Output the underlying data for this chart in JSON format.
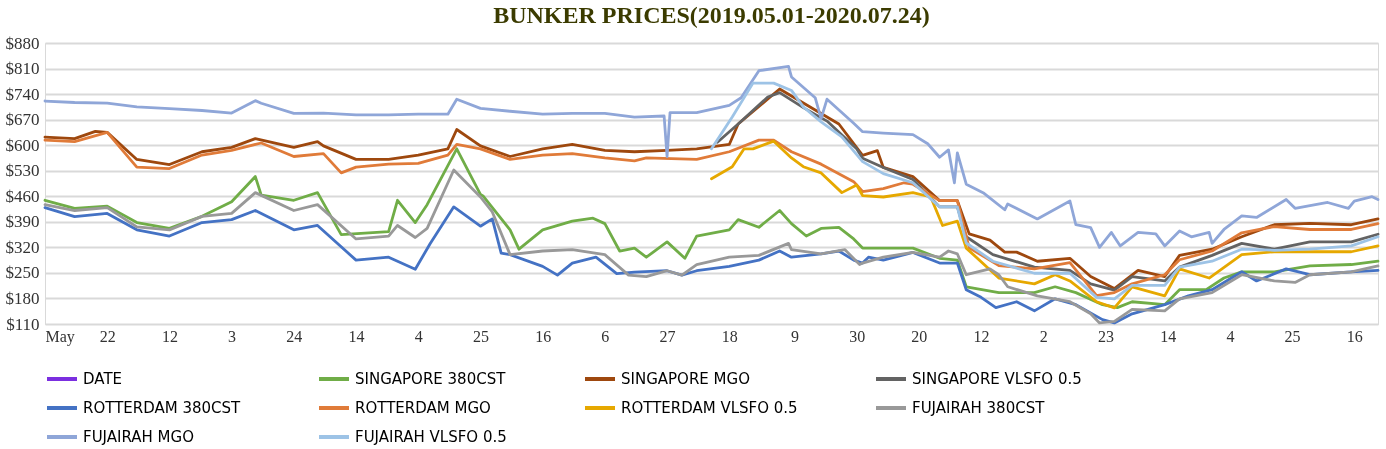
{
  "chart_data": {
    "type": "line",
    "title": "BUNKER PRICES(2019.05.01-2020.07.24)",
    "xlim": [
      "2019-05-01",
      "2020-07-24"
    ],
    "xticks": [
      {
        "value": "2019-05-01",
        "label": "May"
      },
      {
        "value": "2019-05-22",
        "label": "22"
      },
      {
        "value": "2019-06-12",
        "label": "12"
      },
      {
        "value": "2019-07-03",
        "label": "3"
      },
      {
        "value": "2019-07-24",
        "label": "24"
      },
      {
        "value": "2019-08-14",
        "label": "14"
      },
      {
        "value": "2019-09-04",
        "label": "4"
      },
      {
        "value": "2019-09-25",
        "label": "25"
      },
      {
        "value": "2019-10-16",
        "label": "16"
      },
      {
        "value": "2019-11-06",
        "label": "6"
      },
      {
        "value": "2019-11-27",
        "label": "27"
      },
      {
        "value": "2019-12-18",
        "label": "18"
      },
      {
        "value": "2020-01-09",
        "label": "9"
      },
      {
        "value": "2020-01-30",
        "label": "30"
      },
      {
        "value": "2020-02-20",
        "label": "20"
      },
      {
        "value": "2020-03-12",
        "label": "12"
      },
      {
        "value": "2020-04-02",
        "label": "2"
      },
      {
        "value": "2020-04-23",
        "label": "23"
      },
      {
        "value": "2020-05-14",
        "label": "14"
      },
      {
        "value": "2020-06-04",
        "label": "4"
      },
      {
        "value": "2020-06-25",
        "label": "25"
      },
      {
        "value": "2020-07-16",
        "label": "16"
      }
    ],
    "ylim": [
      110,
      880
    ],
    "yticks": [
      {
        "value": 110,
        "label": "$110"
      },
      {
        "value": 180,
        "label": "$180"
      },
      {
        "value": 250,
        "label": "$250"
      },
      {
        "value": 320,
        "label": "$320"
      },
      {
        "value": 390,
        "label": "$390"
      },
      {
        "value": 460,
        "label": "$460"
      },
      {
        "value": 530,
        "label": "$530"
      },
      {
        "value": 600,
        "label": "$600"
      },
      {
        "value": 670,
        "label": "$670"
      },
      {
        "value": 740,
        "label": "$740"
      },
      {
        "value": 810,
        "label": "$810"
      },
      {
        "value": 880,
        "label": "$880"
      }
    ],
    "grid": "y",
    "legend": "bottom",
    "series": [
      {
        "name": "DATE",
        "color": "#7b2fe0"
      },
      {
        "name": "SINGAPORE 380CST",
        "color": "#70ad47",
        "x": [
          "2019-05-01",
          "2019-05-11",
          "2019-05-22",
          "2019-06-01",
          "2019-06-12",
          "2019-06-23",
          "2019-07-03",
          "2019-07-11",
          "2019-07-13",
          "2019-07-24",
          "2019-08-01",
          "2019-08-09",
          "2019-08-25",
          "2019-08-28",
          "2019-09-03",
          "2019-09-07",
          "2019-09-17",
          "2019-09-25",
          "2019-09-26",
          "2019-10-05",
          "2019-10-08",
          "2019-10-16",
          "2019-10-26",
          "2019-11-02",
          "2019-11-06",
          "2019-11-11",
          "2019-11-16",
          "2019-11-20",
          "2019-11-27",
          "2019-12-03",
          "2019-12-07",
          "2019-12-18",
          "2019-12-21",
          "2019-12-28",
          "2020-01-04",
          "2020-01-08",
          "2020-01-13",
          "2020-01-18",
          "2020-01-24",
          "2020-01-29",
          "2020-02-01",
          "2020-02-08",
          "2020-02-18",
          "2020-02-27",
          "2020-03-04",
          "2020-03-07",
          "2020-03-18",
          "2020-03-30",
          "2020-04-06",
          "2020-04-13",
          "2020-04-22",
          "2020-04-27",
          "2020-05-02",
          "2020-05-13",
          "2020-05-18",
          "2020-05-27",
          "2020-06-02",
          "2020-06-08",
          "2020-06-19",
          "2020-07-01",
          "2020-07-15",
          "2020-07-24"
        ],
        "values": [
          449,
          427,
          433,
          388,
          372,
          405,
          445,
          514,
          463,
          449,
          470,
          355,
          363,
          449,
          388,
          437,
          590,
          465,
          460,
          368,
          315,
          368,
          392,
          400,
          385,
          310,
          318,
          293,
          335,
          290,
          351,
          368,
          396,
          375,
          421,
          385,
          351,
          372,
          375,
          343,
          318,
          318,
          318,
          290,
          285,
          212,
          196,
          196,
          212,
          196,
          163,
          155,
          171,
          163,
          204,
          204,
          236,
          253,
          253,
          269,
          273,
          282
        ]
      },
      {
        "name": "SINGAPORE MGO",
        "color": "#9e480e",
        "x": [
          "2019-05-01",
          "2019-05-11",
          "2019-05-18",
          "2019-05-22",
          "2019-06-01",
          "2019-06-12",
          "2019-06-23",
          "2019-07-03",
          "2019-07-11",
          "2019-07-24",
          "2019-08-01",
          "2019-08-03",
          "2019-08-14",
          "2019-08-25",
          "2019-09-04",
          "2019-09-14",
          "2019-09-17",
          "2019-09-25",
          "2019-10-05",
          "2019-10-16",
          "2019-10-26",
          "2019-11-06",
          "2019-11-16",
          "2019-11-27",
          "2019-12-07",
          "2019-12-18",
          "2019-12-21",
          "2020-01-04",
          "2020-01-24",
          "2020-02-01",
          "2020-02-06",
          "2020-02-08",
          "2020-02-18",
          "2020-02-27",
          "2020-03-04",
          "2020-03-08",
          "2020-03-15",
          "2020-03-20",
          "2020-03-24",
          "2020-03-31",
          "2020-04-11",
          "2020-04-18",
          "2020-04-22",
          "2020-04-26",
          "2020-05-04",
          "2020-05-13",
          "2020-05-18",
          "2020-05-29",
          "2020-06-08",
          "2020-06-19",
          "2020-07-01",
          "2020-07-15",
          "2020-07-24"
        ],
        "values": [
          622,
          618,
          638,
          635,
          561,
          547,
          582,
          594,
          618,
          594,
          610,
          598,
          561,
          561,
          573,
          590,
          643,
          598,
          569,
          590,
          602,
          586,
          582,
          586,
          590,
          602,
          658,
          754,
          658,
          572,
          585,
          539,
          514,
          448,
          448,
          357,
          340,
          307,
          307,
          282,
          290,
          240,
          224,
          207,
          257,
          240,
          298,
          315,
          349,
          382,
          386,
          382,
          398
        ]
      },
      {
        "name": "SINGAPORE VLSFO 0.5",
        "color": "#636363",
        "x": [
          "2019-12-14",
          "2019-12-21",
          "2019-12-31",
          "2020-01-04",
          "2020-01-12",
          "2020-01-20",
          "2020-01-30",
          "2020-02-01",
          "2020-02-08",
          "2020-02-18",
          "2020-02-27",
          "2020-03-04",
          "2020-03-07",
          "2020-03-16",
          "2020-03-30",
          "2020-04-11",
          "2020-04-18",
          "2020-04-26",
          "2020-05-02",
          "2020-05-13",
          "2020-05-18",
          "2020-05-29",
          "2020-06-08",
          "2020-06-19",
          "2020-07-01",
          "2020-07-15",
          "2020-07-24"
        ],
        "values": [
          608,
          658,
          732,
          744,
          703,
          666,
          590,
          564,
          539,
          506,
          431,
          431,
          349,
          300,
          266,
          257,
          220,
          203,
          240,
          228,
          266,
          298,
          331,
          315,
          335,
          335,
          356
        ]
      },
      {
        "name": "ROTTERDAM 380CST",
        "color": "#4472c4",
        "x": [
          "2019-05-01",
          "2019-05-11",
          "2019-05-22",
          "2019-06-01",
          "2019-06-12",
          "2019-06-23",
          "2019-07-03",
          "2019-07-11",
          "2019-07-24",
          "2019-08-01",
          "2019-08-14",
          "2019-08-25",
          "2019-09-03",
          "2019-09-08",
          "2019-09-16",
          "2019-09-25",
          "2019-09-29",
          "2019-10-02",
          "2019-10-05",
          "2019-10-16",
          "2019-10-21",
          "2019-10-26",
          "2019-11-03",
          "2019-11-10",
          "2019-11-16",
          "2019-11-27",
          "2019-12-02",
          "2019-12-07",
          "2019-12-18",
          "2019-12-28",
          "2020-01-04",
          "2020-01-08",
          "2020-01-18",
          "2020-01-24",
          "2020-01-29",
          "2020-02-01",
          "2020-02-03",
          "2020-02-08",
          "2020-02-18",
          "2020-02-27",
          "2020-03-04",
          "2020-03-07",
          "2020-03-12",
          "2020-03-17",
          "2020-03-24",
          "2020-03-30",
          "2020-04-06",
          "2020-04-13",
          "2020-04-22",
          "2020-04-26",
          "2020-05-02",
          "2020-05-13",
          "2020-05-21",
          "2020-05-29",
          "2020-06-08",
          "2020-06-13",
          "2020-06-23",
          "2020-07-01",
          "2020-07-15",
          "2020-07-24"
        ],
        "values": [
          429,
          404,
          413,
          368,
          351,
          388,
          396,
          421,
          368,
          380,
          285,
          293,
          260,
          330,
          431,
          378,
          398,
          304,
          300,
          268,
          244,
          277,
          293,
          248,
          252,
          256,
          244,
          256,
          268,
          285,
          310,
          293,
          302,
          310,
          285,
          277,
          293,
          285,
          306,
          277,
          277,
          204,
          183,
          155,
          171,
          146,
          179,
          163,
          122,
          113,
          138,
          163,
          187,
          204,
          253,
          228,
          261,
          245,
          253,
          257
        ]
      },
      {
        "name": "ROTTERDAM MGO",
        "color": "#e07b39",
        "x": [
          "2019-05-01",
          "2019-05-11",
          "2019-05-22",
          "2019-06-01",
          "2019-06-12",
          "2019-06-23",
          "2019-07-03",
          "2019-07-13",
          "2019-07-24",
          "2019-08-03",
          "2019-08-09",
          "2019-08-14",
          "2019-08-25",
          "2019-09-04",
          "2019-09-14",
          "2019-09-17",
          "2019-09-25",
          "2019-10-05",
          "2019-10-16",
          "2019-10-26",
          "2019-11-06",
          "2019-11-16",
          "2019-11-20",
          "2019-12-07",
          "2019-12-18",
          "2019-12-28",
          "2020-01-02",
          "2020-01-08",
          "2020-01-18",
          "2020-01-29",
          "2020-02-01",
          "2020-02-08",
          "2020-02-15",
          "2020-02-18",
          "2020-02-27",
          "2020-03-04",
          "2020-03-08",
          "2020-03-18",
          "2020-03-30",
          "2020-04-11",
          "2020-04-20",
          "2020-04-26",
          "2020-05-02",
          "2020-05-13",
          "2020-05-18",
          "2020-05-29",
          "2020-06-08",
          "2020-06-19",
          "2020-07-01",
          "2020-07-15",
          "2020-07-24"
        ],
        "values": [
          614,
          610,
          635,
          540,
          536,
          573,
          586,
          606,
          569,
          577,
          524,
          540,
          548,
          550,
          573,
          602,
          590,
          561,
          573,
          577,
          565,
          557,
          565,
          561,
          582,
          614,
          614,
          582,
          548,
          500,
          473,
          481,
          497,
          493,
          448,
          448,
          319,
          270,
          261,
          278,
          188,
          196,
          220,
          245,
          286,
          310,
          360,
          377,
          369,
          369,
          385
        ]
      },
      {
        "name": "ROTTERDAM VLSFO 0.5",
        "color": "#e6a800",
        "x": [
          "2019-12-12",
          "2019-12-19",
          "2019-12-23",
          "2019-12-26",
          "2020-01-02",
          "2020-01-08",
          "2020-01-12",
          "2020-01-18",
          "2020-01-25",
          "2020-01-30",
          "2020-02-01",
          "2020-02-08",
          "2020-02-18",
          "2020-02-24",
          "2020-02-28",
          "2020-03-04",
          "2020-03-07",
          "2020-03-18",
          "2020-03-30",
          "2020-04-06",
          "2020-04-11",
          "2020-04-20",
          "2020-04-26",
          "2020-05-02",
          "2020-05-13",
          "2020-05-18",
          "2020-05-28",
          "2020-06-08",
          "2020-06-19",
          "2020-07-01",
          "2020-07-15",
          "2020-07-24"
        ],
        "values": [
          508,
          541,
          590,
          590,
          611,
          565,
          541,
          524,
          470,
          491,
          462,
          458,
          470,
          458,
          380,
          392,
          318,
          236,
          220,
          245,
          228,
          171,
          154,
          212,
          187,
          261,
          236,
          300,
          308,
          308,
          308,
          324
        ]
      },
      {
        "name": "FUJAIRAH  380CST",
        "color": "#999999",
        "x": [
          "2019-05-01",
          "2019-05-11",
          "2019-05-22",
          "2019-06-01",
          "2019-06-12",
          "2019-06-23",
          "2019-07-03",
          "2019-07-11",
          "2019-07-24",
          "2019-08-01",
          "2019-08-14",
          "2019-08-25",
          "2019-08-28",
          "2019-09-03",
          "2019-09-07",
          "2019-09-16",
          "2019-09-25",
          "2019-09-29",
          "2019-10-05",
          "2019-10-16",
          "2019-10-26",
          "2019-11-06",
          "2019-11-14",
          "2019-11-20",
          "2019-11-27",
          "2019-12-02",
          "2019-12-07",
          "2019-12-18",
          "2019-12-28",
          "2020-01-07",
          "2020-01-08",
          "2020-01-18",
          "2020-01-26",
          "2020-01-31",
          "2020-02-01",
          "2020-02-08",
          "2020-02-18",
          "2020-02-27",
          "2020-03-01",
          "2020-03-04",
          "2020-03-07",
          "2020-03-15",
          "2020-03-18",
          "2020-03-21",
          "2020-03-31",
          "2020-04-11",
          "2020-04-18",
          "2020-04-21",
          "2020-04-26",
          "2020-05-02",
          "2020-05-13",
          "2020-05-18",
          "2020-05-29",
          "2020-06-08",
          "2020-06-19",
          "2020-06-26",
          "2020-07-01",
          "2020-07-15",
          "2020-07-24"
        ],
        "values": [
          437,
          421,
          429,
          376,
          368,
          405,
          413,
          470,
          421,
          437,
          343,
          351,
          380,
          347,
          372,
          532,
          458,
          417,
          300,
          310,
          314,
          300,
          244,
          240,
          256,
          244,
          273,
          293,
          298,
          331,
          314,
          302,
          314,
          273,
          277,
          293,
          306,
          293,
          310,
          302,
          245,
          261,
          245,
          212,
          187,
          171,
          138,
          113,
          117,
          150,
          146,
          179,
          196,
          245,
          228,
          224,
          245,
          253,
          269
        ]
      },
      {
        "name": "FUJAIRAH MGO",
        "color": "#8fa6d8",
        "x": [
          "2019-05-01",
          "2019-05-11",
          "2019-05-22",
          "2019-06-01",
          "2019-06-12",
          "2019-06-23",
          "2019-07-03",
          "2019-07-11",
          "2019-07-13",
          "2019-07-24",
          "2019-08-03",
          "2019-08-14",
          "2019-08-25",
          "2019-09-04",
          "2019-09-14",
          "2019-09-17",
          "2019-09-25",
          "2019-10-05",
          "2019-10-16",
          "2019-10-26",
          "2019-11-06",
          "2019-11-16",
          "2019-11-26",
          "2019-11-27",
          "2019-11-28",
          "2019-12-07",
          "2019-12-18",
          "2019-12-22",
          "2019-12-28",
          "2020-01-07",
          "2020-01-08",
          "2020-01-16",
          "2020-01-18",
          "2020-01-20",
          "2020-01-29",
          "2020-02-01",
          "2020-02-08",
          "2020-02-18",
          "2020-02-23",
          "2020-02-27",
          "2020-03-01",
          "2020-03-03",
          "2020-03-04",
          "2020-03-07",
          "2020-03-13",
          "2020-03-20",
          "2020-03-21",
          "2020-03-31",
          "2020-04-11",
          "2020-04-13",
          "2020-04-18",
          "2020-04-21",
          "2020-04-25",
          "2020-04-28",
          "2020-05-04",
          "2020-05-10",
          "2020-05-13",
          "2020-05-18",
          "2020-05-22",
          "2020-05-28",
          "2020-05-29",
          "2020-06-02",
          "2020-06-08",
          "2020-06-13",
          "2020-06-23",
          "2020-06-26",
          "2020-07-07",
          "2020-07-14",
          "2020-07-16",
          "2020-07-22",
          "2020-07-24"
        ],
        "values": [
          721,
          717,
          715,
          705,
          700,
          695,
          688,
          722,
          715,
          687,
          688,
          683,
          683,
          685,
          685,
          726,
          701,
          693,
          685,
          687,
          687,
          677,
          680,
          569,
          689,
          689,
          709,
          730,
          804,
          816,
          787,
          730,
          673,
          726,
          660,
          637,
          633,
          629,
          604,
          567,
          587,
          497,
          579,
          493,
          468,
          423,
          439,
          398,
          447,
          382,
          374,
          320,
          361,
          324,
          361,
          357,
          324,
          365,
          349,
          361,
          331,
          369,
          406,
          402,
          451,
          427,
          443,
          427,
          447,
          459,
          451
        ]
      },
      {
        "name": "FUJAIRAH VLSFO 0.5",
        "color": "#9dc3e6",
        "x": [
          "2019-12-12",
          "2019-12-19",
          "2019-12-26",
          "2020-01-02",
          "2020-01-08",
          "2020-01-12",
          "2020-01-18",
          "2020-01-25",
          "2020-02-01",
          "2020-02-08",
          "2020-02-18",
          "2020-02-27",
          "2020-03-04",
          "2020-03-07",
          "2020-03-16",
          "2020-03-30",
          "2020-04-11",
          "2020-04-20",
          "2020-04-26",
          "2020-05-02",
          "2020-05-13",
          "2020-05-18",
          "2020-05-29",
          "2020-06-08",
          "2020-06-19",
          "2020-07-01",
          "2020-07-15",
          "2020-07-24"
        ],
        "values": [
          590,
          677,
          770,
          770,
          750,
          705,
          664,
          623,
          555,
          522,
          497,
          431,
          431,
          332,
          282,
          249,
          249,
          183,
          179,
          216,
          216,
          266,
          282,
          315,
          312,
          315,
          324,
          349
        ]
      }
    ]
  }
}
